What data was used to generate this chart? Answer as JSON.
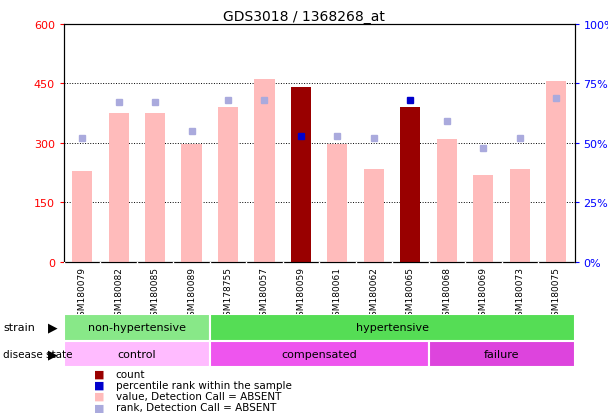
{
  "title": "GDS3018 / 1368268_at",
  "samples": [
    "GSM180079",
    "GSM180082",
    "GSM180085",
    "GSM180089",
    "GSM178755",
    "GSM180057",
    "GSM180059",
    "GSM180061",
    "GSM180062",
    "GSM180065",
    "GSM180068",
    "GSM180069",
    "GSM180073",
    "GSM180075"
  ],
  "values": [
    230,
    375,
    375,
    298,
    390,
    460,
    440,
    298,
    235,
    390,
    310,
    220,
    235,
    455
  ],
  "ranks_pct": [
    52,
    67,
    67,
    55,
    68,
    68,
    53,
    53,
    52,
    68,
    59,
    48,
    52,
    69
  ],
  "is_count": [
    false,
    false,
    false,
    false,
    false,
    false,
    true,
    false,
    false,
    true,
    false,
    false,
    false,
    false
  ],
  "ylim_left": [
    0,
    600
  ],
  "yticks_left": [
    0,
    150,
    300,
    450,
    600
  ],
  "ytick_labels_left": [
    "0",
    "150",
    "300",
    "450",
    "600"
  ],
  "ytick_labels_right": [
    "0%",
    "25%",
    "50%",
    "75%",
    "100%"
  ],
  "strain_groups": [
    {
      "label": "non-hypertensive",
      "start": 0,
      "end": 4,
      "color": "#88e888"
    },
    {
      "label": "hypertensive",
      "start": 4,
      "end": 14,
      "color": "#55dd55"
    }
  ],
  "disease_groups": [
    {
      "label": "control",
      "start": 0,
      "end": 4,
      "color": "#ffbbff"
    },
    {
      "label": "compensated",
      "start": 4,
      "end": 10,
      "color": "#ee55ee"
    },
    {
      "label": "failure",
      "start": 10,
      "end": 14,
      "color": "#dd44dd"
    }
  ],
  "bar_color_absent": "#ffbbbb",
  "bar_color_count": "#990000",
  "rank_color_absent": "#aaaadd",
  "rank_color_count": "#0000cc",
  "bar_width": 0.55
}
